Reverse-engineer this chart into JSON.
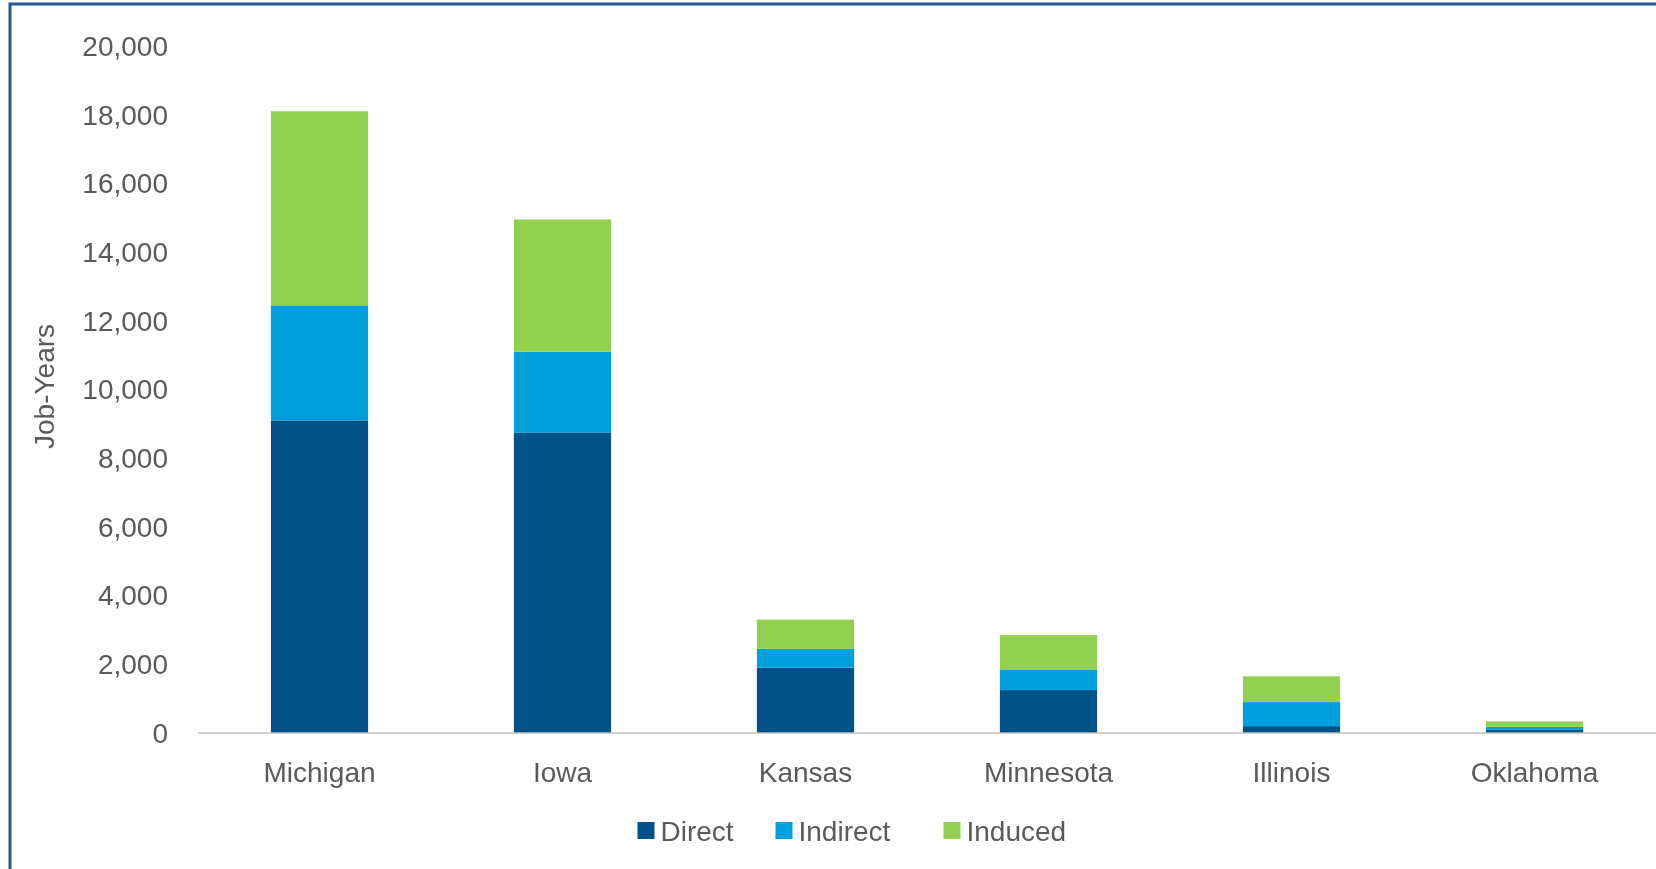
{
  "chart_data": {
    "type": "bar",
    "stacked": true,
    "ylabel": "Job-Years",
    "categories": [
      "Michigan",
      "Iowa",
      "Kansas",
      "Minnesota",
      "Illinois",
      "Oklahoma"
    ],
    "series": [
      {
        "name": "Direct",
        "color": "#005289",
        "values": [
          9100,
          8750,
          1900,
          1250,
          200,
          90
        ]
      },
      {
        "name": "Indirect",
        "color": "#00a0df",
        "values": [
          3350,
          2350,
          550,
          600,
          700,
          90
        ]
      },
      {
        "name": "Induced",
        "color": "#92d050",
        "values": [
          5650,
          3850,
          850,
          1000,
          750,
          160
        ]
      }
    ],
    "ylim": [
      0,
      20000
    ],
    "yticks": [
      {
        "value": 0,
        "label": "0"
      },
      {
        "value": 2000,
        "label": "2,000"
      },
      {
        "value": 4000,
        "label": "4,000"
      },
      {
        "value": 6000,
        "label": "6,000"
      },
      {
        "value": 8000,
        "label": "8,000"
      },
      {
        "value": 10000,
        "label": "10,000"
      },
      {
        "value": 12000,
        "label": "12,000"
      },
      {
        "value": 14000,
        "label": "14,000"
      },
      {
        "value": 16000,
        "label": "16,000"
      },
      {
        "value": 18000,
        "label": "18,000"
      },
      {
        "value": 20000,
        "label": "20,000"
      }
    ],
    "grid": false,
    "legend": "bottom"
  }
}
